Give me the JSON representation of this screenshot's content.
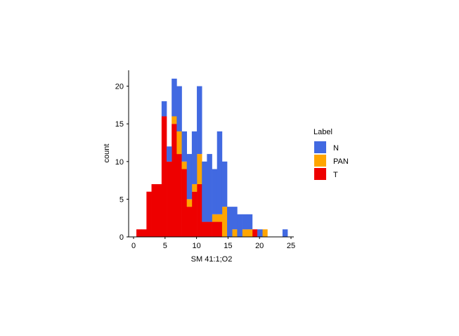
{
  "chart_data": {
    "type": "bar",
    "stacked": true,
    "title": "",
    "xlabel": "SM 41:1;O2",
    "ylabel": "count",
    "xlim": [
      -0.5,
      25.5
    ],
    "ylim": [
      0,
      22
    ],
    "xticks": [
      0,
      5,
      10,
      15,
      20,
      25
    ],
    "yticks": [
      0,
      5,
      10,
      15,
      20
    ],
    "bin_start": 0.45,
    "bin_width": 0.8,
    "legend_title": "Label",
    "legend_position": "right",
    "series": [
      {
        "name": "T",
        "color": "#EE0000",
        "values": [
          1,
          1,
          6,
          7,
          7,
          16,
          10,
          15,
          11,
          9,
          4,
          6,
          7,
          2,
          2,
          2,
          2,
          0,
          0,
          0,
          0,
          0,
          0,
          1,
          0,
          0,
          0,
          0,
          0,
          0
        ]
      },
      {
        "name": "PAN",
        "color": "#FFA500",
        "values": [
          0,
          0,
          0,
          0,
          0,
          0,
          0,
          1,
          3,
          1,
          1,
          1,
          4,
          0,
          0,
          1,
          1,
          4,
          0,
          1,
          0,
          1,
          1,
          0,
          0,
          1,
          0,
          0,
          0,
          0
        ]
      },
      {
        "name": "N",
        "color": "#4169E1",
        "values": [
          0,
          0,
          0,
          0,
          0,
          2,
          2,
          5,
          6,
          4,
          6,
          7,
          9,
          8,
          9,
          6,
          11,
          6,
          4,
          3,
          3,
          2,
          2,
          0,
          1,
          0,
          0,
          0,
          0,
          1
        ]
      }
    ],
    "legend_order": [
      "N",
      "PAN",
      "T"
    ]
  }
}
